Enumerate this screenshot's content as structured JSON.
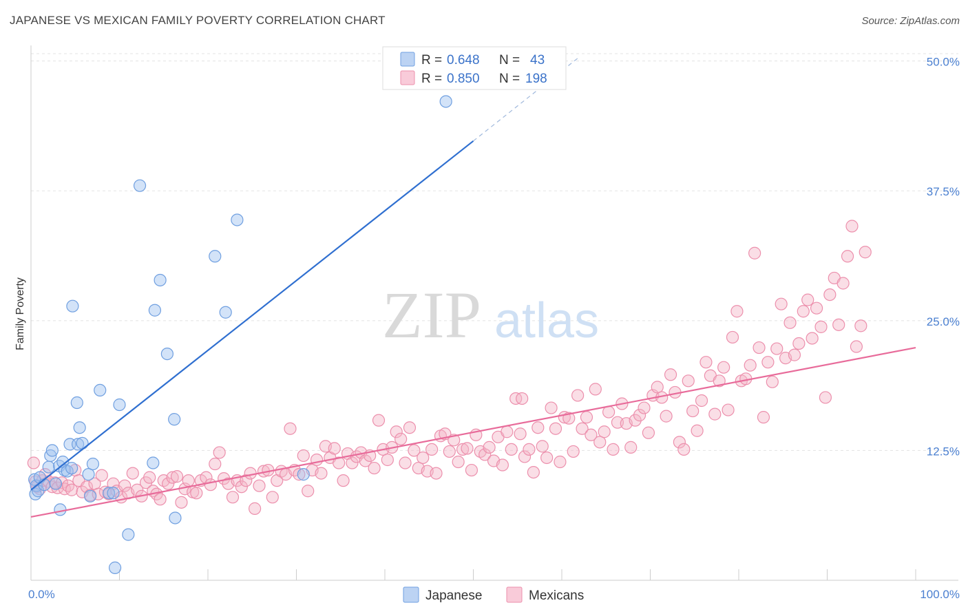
{
  "header": {
    "title": "JAPANESE VS MEXICAN FAMILY POVERTY CORRELATION CHART",
    "source": "Source: ZipAtlas.com"
  },
  "watermark": {
    "zip": "ZIP",
    "atlas": "atlas"
  },
  "legend_top": {
    "rows": [
      {
        "r_label": "R =",
        "r_value": "0.648",
        "n_label": "N =",
        "n_value": "43",
        "color": "#9ec0ef"
      },
      {
        "r_label": "R =",
        "r_value": "0.850",
        "n_label": "N =",
        "n_value": "198",
        "color": "#f5b5c8"
      }
    ]
  },
  "chart_data": {
    "type": "scatter",
    "title": "JAPANESE VS MEXICAN FAMILY POVERTY CORRELATION CHART",
    "xlabel": "",
    "ylabel": "Family Poverty",
    "xlim": [
      0,
      100
    ],
    "ylim": [
      0,
      51.5
    ],
    "x_tick_labels": [
      "0.0%",
      "100.0%"
    ],
    "y_ticks": [
      12.5,
      25.0,
      37.5,
      50.0
    ],
    "y_tick_labels": [
      "12.5%",
      "25.0%",
      "37.5%",
      "50.0%"
    ],
    "grid": "horizontal dashed",
    "legend": "top-center, bottom-center",
    "series": [
      {
        "name": "Japanese",
        "color": "#9ec0ef",
        "stroke": "#6f9fe0",
        "line_color": "#2f6fd0",
        "trend": {
          "x0": 0,
          "y0": 8.7,
          "x1": 50,
          "y1": 42.3,
          "dash_to_x": 62,
          "dash_to_y": 50.4
        },
        "points": [
          [
            0.4,
            9.7
          ],
          [
            0.5,
            8.3
          ],
          [
            0.6,
            9.1
          ],
          [
            0.8,
            8.6
          ],
          [
            1.0,
            9.9
          ],
          [
            1.5,
            9.2
          ],
          [
            2.0,
            10.9
          ],
          [
            2.2,
            12.0
          ],
          [
            2.4,
            12.5
          ],
          [
            2.8,
            9.3
          ],
          [
            3.2,
            11.0
          ],
          [
            3.3,
            6.8
          ],
          [
            3.6,
            11.4
          ],
          [
            3.8,
            10.6
          ],
          [
            4.1,
            10.5
          ],
          [
            4.4,
            13.1
          ],
          [
            4.6,
            10.8
          ],
          [
            4.7,
            26.4
          ],
          [
            5.2,
            17.1
          ],
          [
            5.3,
            13.1
          ],
          [
            5.5,
            14.7
          ],
          [
            5.8,
            13.2
          ],
          [
            6.5,
            10.2
          ],
          [
            6.7,
            8.1
          ],
          [
            7.0,
            11.2
          ],
          [
            7.8,
            18.3
          ],
          [
            8.8,
            8.4
          ],
          [
            9.3,
            8.4
          ],
          [
            10.0,
            16.9
          ],
          [
            11.0,
            4.4
          ],
          [
            9.5,
            1.2
          ],
          [
            12.3,
            38.0
          ],
          [
            13.8,
            11.3
          ],
          [
            14.0,
            26.0
          ],
          [
            14.6,
            28.9
          ],
          [
            15.4,
            21.8
          ],
          [
            16.2,
            15.5
          ],
          [
            16.3,
            6.0
          ],
          [
            20.8,
            31.2
          ],
          [
            22.0,
            25.8
          ],
          [
            23.3,
            34.7
          ],
          [
            30.8,
            10.2
          ],
          [
            46.9,
            46.1
          ]
        ]
      },
      {
        "name": "Mexicans",
        "color": "#f5b5c8",
        "stroke": "#ec8fac",
        "line_color": "#e86b9a",
        "trend": {
          "x0": 0,
          "y0": 6.1,
          "x1": 100,
          "y1": 22.4
        },
        "points": [
          [
            0.3,
            11.3
          ],
          [
            0.5,
            9.5
          ],
          [
            0.7,
            9.0
          ],
          [
            1.0,
            8.8
          ],
          [
            1.3,
            9.6
          ],
          [
            1.6,
            10.2
          ],
          [
            2.0,
            9.5
          ],
          [
            2.4,
            9.0
          ],
          [
            2.7,
            9.4
          ],
          [
            3.0,
            8.9
          ],
          [
            3.5,
            9.4
          ],
          [
            3.8,
            8.8
          ],
          [
            4.2,
            9.1
          ],
          [
            4.6,
            8.7
          ],
          [
            5.0,
            10.6
          ],
          [
            5.4,
            9.6
          ],
          [
            5.8,
            8.5
          ],
          [
            6.3,
            9.0
          ],
          [
            6.7,
            8.2
          ],
          [
            7.2,
            9.3
          ],
          [
            7.6,
            8.3
          ],
          [
            8.0,
            10.1
          ],
          [
            8.4,
            8.5
          ],
          [
            8.8,
            8.3
          ],
          [
            9.3,
            9.3
          ],
          [
            9.7,
            8.6
          ],
          [
            10.2,
            8.0
          ],
          [
            10.6,
            9.1
          ],
          [
            11.0,
            8.4
          ],
          [
            11.5,
            10.3
          ],
          [
            12.0,
            8.7
          ],
          [
            12.5,
            8.1
          ],
          [
            13.0,
            9.4
          ],
          [
            13.4,
            9.9
          ],
          [
            13.8,
            8.6
          ],
          [
            14.2,
            8.3
          ],
          [
            14.6,
            7.8
          ],
          [
            15.0,
            9.6
          ],
          [
            15.5,
            9.3
          ],
          [
            16.0,
            9.9
          ],
          [
            16.5,
            10.0
          ],
          [
            17.0,
            7.5
          ],
          [
            17.4,
            8.8
          ],
          [
            17.8,
            9.6
          ],
          [
            18.3,
            8.5
          ],
          [
            18.7,
            8.4
          ],
          [
            19.2,
            9.6
          ],
          [
            19.8,
            9.9
          ],
          [
            20.3,
            9.2
          ],
          [
            20.8,
            11.2
          ],
          [
            21.3,
            12.3
          ],
          [
            21.8,
            9.8
          ],
          [
            22.3,
            9.3
          ],
          [
            22.8,
            8.0
          ],
          [
            23.3,
            9.6
          ],
          [
            23.8,
            9.0
          ],
          [
            24.3,
            9.6
          ],
          [
            24.8,
            10.3
          ],
          [
            25.3,
            6.9
          ],
          [
            25.8,
            9.1
          ],
          [
            26.3,
            10.5
          ],
          [
            26.8,
            10.6
          ],
          [
            27.3,
            8.0
          ],
          [
            27.8,
            9.6
          ],
          [
            28.3,
            10.5
          ],
          [
            28.8,
            10.2
          ],
          [
            29.3,
            14.6
          ],
          [
            29.8,
            10.6
          ],
          [
            30.3,
            10.2
          ],
          [
            30.8,
            12.0
          ],
          [
            31.3,
            8.6
          ],
          [
            31.8,
            10.6
          ],
          [
            32.3,
            11.6
          ],
          [
            32.8,
            10.3
          ],
          [
            33.3,
            12.9
          ],
          [
            33.8,
            11.8
          ],
          [
            34.3,
            12.7
          ],
          [
            34.8,
            11.3
          ],
          [
            35.3,
            9.6
          ],
          [
            35.8,
            12.2
          ],
          [
            36.3,
            11.3
          ],
          [
            36.8,
            11.9
          ],
          [
            37.3,
            12.3
          ],
          [
            37.8,
            11.5
          ],
          [
            38.3,
            12.0
          ],
          [
            38.8,
            10.8
          ],
          [
            39.3,
            15.4
          ],
          [
            39.8,
            12.6
          ],
          [
            40.3,
            11.6
          ],
          [
            40.8,
            12.8
          ],
          [
            41.3,
            14.3
          ],
          [
            41.8,
            13.6
          ],
          [
            42.3,
            11.3
          ],
          [
            42.8,
            14.7
          ],
          [
            43.3,
            12.5
          ],
          [
            43.8,
            10.8
          ],
          [
            44.3,
            11.8
          ],
          [
            44.8,
            10.5
          ],
          [
            45.3,
            12.6
          ],
          [
            45.8,
            10.3
          ],
          [
            46.3,
            13.9
          ],
          [
            46.8,
            14.1
          ],
          [
            47.3,
            12.4
          ],
          [
            47.8,
            13.5
          ],
          [
            48.3,
            11.4
          ],
          [
            48.8,
            12.6
          ],
          [
            49.3,
            12.7
          ],
          [
            49.8,
            10.6
          ],
          [
            50.3,
            14.0
          ],
          [
            50.8,
            12.4
          ],
          [
            51.3,
            12.1
          ],
          [
            51.8,
            12.8
          ],
          [
            52.3,
            11.5
          ],
          [
            52.8,
            13.8
          ],
          [
            53.3,
            11.1
          ],
          [
            53.8,
            14.3
          ],
          [
            54.3,
            12.6
          ],
          [
            54.8,
            17.5
          ],
          [
            55.3,
            14.1
          ],
          [
            55.8,
            11.9
          ],
          [
            56.3,
            12.6
          ],
          [
            56.8,
            10.4
          ],
          [
            57.3,
            14.7
          ],
          [
            57.8,
            12.9
          ],
          [
            58.3,
            11.8
          ],
          [
            58.8,
            16.6
          ],
          [
            59.3,
            14.6
          ],
          [
            59.8,
            11.4
          ],
          [
            60.3,
            15.7
          ],
          [
            60.8,
            15.6
          ],
          [
            61.3,
            12.4
          ],
          [
            61.8,
            17.8
          ],
          [
            62.3,
            14.6
          ],
          [
            62.8,
            15.7
          ],
          [
            63.3,
            14.0
          ],
          [
            63.8,
            18.4
          ],
          [
            64.3,
            13.3
          ],
          [
            64.8,
            14.3
          ],
          [
            65.3,
            16.2
          ],
          [
            65.8,
            12.6
          ],
          [
            66.3,
            15.2
          ],
          [
            66.8,
            17.0
          ],
          [
            67.3,
            15.1
          ],
          [
            67.8,
            12.8
          ],
          [
            68.3,
            15.4
          ],
          [
            68.8,
            15.9
          ],
          [
            69.3,
            16.6
          ],
          [
            69.8,
            14.2
          ],
          [
            70.3,
            17.8
          ],
          [
            70.8,
            18.6
          ],
          [
            71.3,
            17.6
          ],
          [
            71.8,
            15.8
          ],
          [
            72.3,
            19.8
          ],
          [
            72.8,
            18.1
          ],
          [
            73.3,
            13.3
          ],
          [
            73.8,
            12.6
          ],
          [
            74.3,
            19.2
          ],
          [
            74.8,
            16.3
          ],
          [
            75.3,
            14.4
          ],
          [
            75.8,
            17.3
          ],
          [
            76.3,
            21.0
          ],
          [
            76.8,
            19.7
          ],
          [
            77.3,
            16.0
          ],
          [
            77.8,
            19.2
          ],
          [
            78.3,
            20.5
          ],
          [
            78.8,
            16.4
          ],
          [
            79.3,
            23.4
          ],
          [
            79.8,
            25.9
          ],
          [
            80.3,
            19.2
          ],
          [
            80.8,
            19.4
          ],
          [
            81.3,
            20.7
          ],
          [
            81.8,
            31.5
          ],
          [
            82.3,
            22.4
          ],
          [
            82.8,
            15.7
          ],
          [
            83.3,
            21.0
          ],
          [
            83.8,
            19.1
          ],
          [
            84.3,
            22.3
          ],
          [
            84.8,
            26.6
          ],
          [
            85.3,
            21.4
          ],
          [
            85.8,
            24.8
          ],
          [
            86.3,
            21.7
          ],
          [
            86.8,
            22.8
          ],
          [
            87.3,
            25.9
          ],
          [
            87.8,
            27.0
          ],
          [
            88.3,
            23.3
          ],
          [
            88.8,
            26.2
          ],
          [
            89.3,
            24.4
          ],
          [
            89.8,
            17.6
          ],
          [
            90.3,
            27.5
          ],
          [
            90.8,
            29.1
          ],
          [
            91.3,
            24.6
          ],
          [
            91.8,
            28.6
          ],
          [
            92.3,
            31.2
          ],
          [
            92.8,
            34.1
          ],
          [
            93.3,
            22.5
          ],
          [
            93.8,
            24.5
          ],
          [
            94.3,
            31.6
          ],
          [
            55.5,
            17.5
          ]
        ]
      }
    ]
  },
  "legend_bottom": {
    "items": [
      {
        "label": "Japanese",
        "color": "#9ec0ef"
      },
      {
        "label": "Mexicans",
        "color": "#f5b5c8"
      }
    ]
  }
}
